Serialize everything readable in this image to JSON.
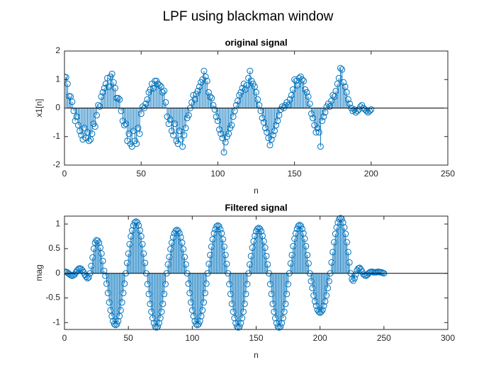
{
  "title": "LPF using blackman window",
  "chart_data": [
    {
      "type": "stem",
      "title": "original signal",
      "xlabel": "n",
      "ylabel": "x1[n]",
      "color": "#0072BD",
      "xlim": [
        0,
        250
      ],
      "xticks": [
        0,
        50,
        100,
        150,
        200,
        250
      ],
      "ylim": [
        -2,
        2
      ],
      "yticks": [
        -2,
        -1,
        0,
        1,
        2
      ],
      "x": [
        0,
        1,
        2,
        3,
        4,
        5,
        6,
        7,
        8,
        9,
        10,
        11,
        12,
        13,
        14,
        15,
        16,
        17,
        18,
        19,
        20,
        21,
        22,
        23,
        24,
        25,
        26,
        27,
        28,
        29,
        30,
        31,
        32,
        33,
        34,
        35,
        36,
        37,
        38,
        39,
        40,
        41,
        42,
        43,
        44,
        45,
        46,
        47,
        48,
        49,
        50,
        51,
        52,
        53,
        54,
        55,
        56,
        57,
        58,
        59,
        60,
        61,
        62,
        63,
        64,
        65,
        66,
        67,
        68,
        69,
        70,
        71,
        72,
        73,
        74,
        75,
        76,
        77,
        78,
        79,
        80,
        81,
        82,
        83,
        84,
        85,
        86,
        87,
        88,
        89,
        90,
        91,
        92,
        93,
        94,
        95,
        96,
        97,
        98,
        99,
        100,
        101,
        102,
        103,
        104,
        105,
        106,
        107,
        108,
        109,
        110,
        111,
        112,
        113,
        114,
        115,
        116,
        117,
        118,
        119,
        120,
        121,
        122,
        123,
        124,
        125,
        126,
        127,
        128,
        129,
        130,
        131,
        132,
        133,
        134,
        135,
        136,
        137,
        138,
        139,
        140,
        141,
        142,
        143,
        144,
        145,
        146,
        147,
        148,
        149,
        150,
        151,
        152,
        153,
        154,
        155,
        156,
        157,
        158,
        159,
        160,
        161,
        162,
        163,
        164,
        165,
        166,
        167,
        168,
        169,
        170,
        171,
        172,
        173,
        174,
        175,
        176,
        177,
        178,
        179,
        180,
        181,
        182,
        183,
        184,
        185,
        186,
        187,
        188,
        189,
        190,
        191,
        192,
        193,
        194,
        195,
        196,
        197,
        198,
        199,
        200
      ],
      "values": [
        1.1,
        1.08,
        0.85,
        0.42,
        0.4,
        0.22,
        -0.1,
        -0.45,
        -0.3,
        -0.6,
        -0.8,
        -0.95,
        -1.1,
        -0.7,
        -1.05,
        -0.85,
        -1.15,
        -1.1,
        -0.9,
        -0.55,
        -0.65,
        -0.25,
        0.1,
        0.05,
        0.4,
        0.55,
        0.7,
        0.85,
        1.05,
        0.75,
        1.1,
        1.2,
        0.9,
        0.7,
        0.35,
        0.35,
        0.3,
        -0.1,
        -0.45,
        -0.6,
        -0.55,
        -1.15,
        -0.9,
        -1.25,
        -1.35,
        -0.8,
        -1.15,
        -1.25,
        -0.7,
        -0.9,
        -0.2,
        0.05,
        0.0,
        0.15,
        0.3,
        0.55,
        0.65,
        0.85,
        0.7,
        0.95,
        0.95,
        0.85,
        0.8,
        0.75,
        0.55,
        0.6,
        0.2,
        -0.3,
        -0.55,
        -0.4,
        -0.8,
        -0.95,
        -0.55,
        -1.15,
        -1.25,
        -0.8,
        -1.1,
        -1.35,
        -0.95,
        -0.7,
        -0.35,
        -0.25,
        0.0,
        0.2,
        0.45,
        0.3,
        0.5,
        0.6,
        0.75,
        0.9,
        1.0,
        1.3,
        1.1,
        0.95,
        0.55,
        0.4,
        0.35,
        0.1,
        -0.05,
        -0.3,
        -0.45,
        -0.75,
        -0.9,
        -1.05,
        -1.55,
        -1.2,
        -1.0,
        -0.9,
        -0.7,
        -0.6,
        -0.3,
        -0.1,
        0.1,
        0.25,
        0.45,
        0.55,
        0.7,
        0.85,
        0.65,
        0.8,
        1.05,
        1.3,
        0.95,
        0.85,
        0.75,
        0.55,
        0.3,
        0.1,
        -0.1,
        -0.35,
        -0.5,
        -0.7,
        -0.85,
        -1.05,
        -1.3,
        -1.1,
        -0.95,
        -0.8,
        -0.6,
        -0.45,
        -0.25,
        -0.05,
        0.05,
        0.0,
        0.1,
        0.2,
        0.1,
        0.3,
        0.45,
        0.65,
        1.0,
        0.95,
        0.8,
        1.05,
        1.1,
        1.0,
        0.95,
        0.65,
        0.55,
        0.4,
        0.15,
        -0.2,
        -0.35,
        -0.6,
        -0.85,
        -0.7,
        -0.85,
        -1.35,
        -0.45,
        -0.3,
        -0.15,
        0.05,
        0.15,
        0.05,
        0.25,
        0.45,
        0.4,
        0.6,
        0.85,
        1.05,
        1.4,
        1.35,
        0.9,
        0.75,
        0.55,
        0.3,
        0.15,
        0.0,
        -0.1,
        -0.05,
        -0.15,
        -0.1,
        -0.05,
        0.05,
        0.1,
        0.0,
        -0.05,
        -0.1,
        -0.15,
        -0.1,
        -0.05
      ]
    },
    {
      "type": "stem",
      "title": "Filtered signal",
      "xlabel": "n",
      "ylabel": "mag",
      "color": "#0072BD",
      "xlim": [
        0,
        300
      ],
      "xticks": [
        0,
        50,
        100,
        150,
        200,
        250,
        300
      ],
      "ylim": [
        -1.14,
        1.16
      ],
      "yticks": [
        -1,
        -0.5,
        0,
        0.5,
        1
      ],
      "x": [
        0,
        1,
        2,
        3,
        4,
        5,
        6,
        7,
        8,
        9,
        10,
        11,
        12,
        13,
        14,
        15,
        16,
        17,
        18,
        19,
        20,
        21,
        22,
        23,
        24,
        25,
        26,
        27,
        28,
        29,
        30,
        31,
        32,
        33,
        34,
        35,
        36,
        37,
        38,
        39,
        40,
        41,
        42,
        43,
        44,
        45,
        46,
        47,
        48,
        49,
        50,
        51,
        52,
        53,
        54,
        55,
        56,
        57,
        58,
        59,
        60,
        61,
        62,
        63,
        64,
        65,
        66,
        67,
        68,
        69,
        70,
        71,
        72,
        73,
        74,
        75,
        76,
        77,
        78,
        79,
        80,
        81,
        82,
        83,
        84,
        85,
        86,
        87,
        88,
        89,
        90,
        91,
        92,
        93,
        94,
        95,
        96,
        97,
        98,
        99,
        100,
        101,
        102,
        103,
        104,
        105,
        106,
        107,
        108,
        109,
        110,
        111,
        112,
        113,
        114,
        115,
        116,
        117,
        118,
        119,
        120,
        121,
        122,
        123,
        124,
        125,
        126,
        127,
        128,
        129,
        130,
        131,
        132,
        133,
        134,
        135,
        136,
        137,
        138,
        139,
        140,
        141,
        142,
        143,
        144,
        145,
        146,
        147,
        148,
        149,
        150,
        151,
        152,
        153,
        154,
        155,
        156,
        157,
        158,
        159,
        160,
        161,
        162,
        163,
        164,
        165,
        166,
        167,
        168,
        169,
        170,
        171,
        172,
        173,
        174,
        175,
        176,
        177,
        178,
        179,
        180,
        181,
        182,
        183,
        184,
        185,
        186,
        187,
        188,
        189,
        190,
        191,
        192,
        193,
        194,
        195,
        196,
        197,
        198,
        199,
        200,
        201,
        202,
        203,
        204,
        205,
        206,
        207,
        208,
        209,
        210,
        211,
        212,
        213,
        214,
        215,
        216,
        217,
        218,
        219,
        220,
        221,
        222,
        223,
        224,
        225,
        226,
        227,
        228,
        229,
        230,
        231,
        232,
        233,
        234,
        235,
        236,
        237,
        238,
        239,
        240,
        241,
        242,
        243,
        244,
        245,
        246,
        247,
        248,
        249,
        250
      ],
      "values": [
        0.03,
        0.03,
        0.02,
        0.0,
        -0.02,
        -0.04,
        -0.05,
        -0.04,
        -0.02,
        0.02,
        0.06,
        0.09,
        0.1,
        0.09,
        0.06,
        0.02,
        -0.03,
        -0.07,
        -0.1,
        -0.08,
        0.0,
        0.15,
        0.32,
        0.5,
        0.62,
        0.67,
        0.66,
        0.62,
        0.52,
        0.4,
        0.25,
        0.05,
        -0.05,
        -0.21,
        -0.4,
        -0.59,
        -0.75,
        -0.87,
        -0.97,
        -1.03,
        -1.05,
        -1.03,
        -0.97,
        -0.87,
        -0.75,
        -0.59,
        -0.4,
        -0.21,
        0.0,
        0.21,
        0.4,
        0.59,
        0.75,
        0.87,
        0.97,
        1.03,
        1.05,
        1.03,
        0.97,
        0.87,
        0.75,
        0.59,
        0.4,
        0.21,
        0.0,
        -0.22,
        -0.42,
        -0.62,
        -0.78,
        -0.91,
        -1.01,
        -1.08,
        -1.1,
        -1.08,
        -1.01,
        -0.91,
        -0.78,
        -0.62,
        -0.42,
        -0.22,
        0.0,
        0.18,
        0.33,
        0.49,
        0.62,
        0.73,
        0.81,
        0.86,
        0.88,
        0.86,
        0.81,
        0.73,
        0.62,
        0.49,
        0.33,
        0.18,
        0.0,
        -0.21,
        -0.4,
        -0.59,
        -0.75,
        -0.87,
        -0.97,
        -1.03,
        -1.05,
        -1.03,
        -0.97,
        -0.87,
        -0.75,
        -0.59,
        -0.4,
        -0.21,
        0.0,
        0.19,
        0.37,
        0.54,
        0.69,
        0.81,
        0.89,
        0.95,
        0.97,
        0.95,
        0.89,
        0.81,
        0.69,
        0.54,
        0.37,
        0.19,
        0.0,
        -0.22,
        -0.42,
        -0.62,
        -0.78,
        -0.91,
        -1.01,
        -1.08,
        -1.1,
        -1.08,
        -1.01,
        -0.91,
        -0.78,
        -0.62,
        -0.42,
        -0.22,
        0.0,
        0.18,
        0.35,
        0.52,
        0.65,
        0.76,
        0.85,
        0.9,
        0.92,
        0.9,
        0.85,
        0.76,
        0.65,
        0.52,
        0.35,
        0.18,
        0.0,
        -0.22,
        -0.42,
        -0.62,
        -0.78,
        -0.91,
        -1.01,
        -1.08,
        -1.1,
        -1.08,
        -1.01,
        -0.91,
        -0.78,
        -0.62,
        -0.42,
        -0.22,
        0.0,
        0.2,
        0.37,
        0.55,
        0.7,
        0.81,
        0.9,
        0.96,
        0.98,
        0.96,
        0.9,
        0.81,
        0.7,
        0.55,
        0.37,
        0.2,
        0.0,
        -0.16,
        -0.3,
        -0.45,
        -0.57,
        -0.66,
        -0.74,
        -0.78,
        -0.8,
        -0.78,
        -0.74,
        -0.66,
        -0.57,
        -0.45,
        -0.3,
        -0.16,
        0.0,
        0.22,
        0.43,
        0.63,
        0.8,
        0.93,
        1.03,
        1.1,
        1.12,
        1.1,
        1.03,
        0.93,
        0.8,
        0.63,
        0.43,
        0.22,
        0.0,
        -0.12,
        -0.15,
        -0.1,
        -0.02,
        0.06,
        0.1,
        0.11,
        0.08,
        0.03,
        -0.02,
        -0.04,
        -0.05,
        -0.03,
        0.0,
        0.02,
        0.03,
        0.03,
        0.02,
        0.02,
        0.02,
        0.03,
        0.03,
        0.02,
        0.02,
        0.01,
        0.0
      ]
    }
  ]
}
